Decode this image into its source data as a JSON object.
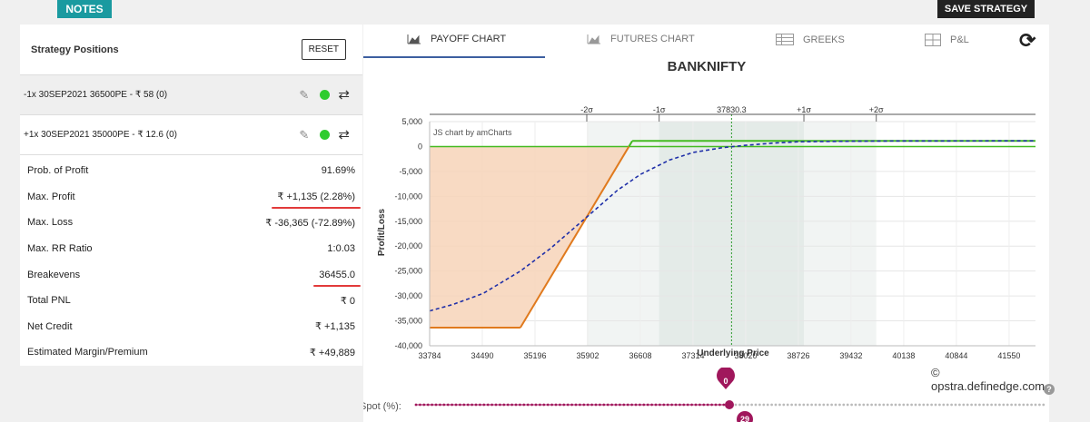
{
  "top": {
    "notes_label": "NOTES",
    "save_label": "SAVE STRATEGY"
  },
  "positions": {
    "title": "Strategy Positions",
    "reset_label": "RESET",
    "items": [
      {
        "label": "-1x 30SEP2021 36500PE - ₹ 58  (0)"
      },
      {
        "label": "+1x 30SEP2021 35000PE - ₹ 12.6  (0)"
      }
    ]
  },
  "stats": [
    {
      "label": "Prob. of Profit",
      "value": "91.69%"
    },
    {
      "label": "Max. Profit",
      "value": "₹ +1,135 (2.28%)"
    },
    {
      "label": "Max. Loss",
      "value": "₹ -36,365 (-72.89%)"
    },
    {
      "label": "Max. RR Ratio",
      "value": "1:0.03"
    },
    {
      "label": "Breakevens",
      "value": "36455.0"
    },
    {
      "label": "Total PNL",
      "value": "₹ 0"
    },
    {
      "label": "Net Credit",
      "value": "₹ +1,135"
    },
    {
      "label": "Estimated Margin/Premium",
      "value": "₹ +49,889"
    }
  ],
  "tabs": [
    {
      "label": "PAYOFF CHART",
      "icon": "area-chart-icon"
    },
    {
      "label": "FUTURES CHART",
      "icon": "area-chart-icon"
    },
    {
      "label": "GREEKS",
      "icon": "table-icon"
    },
    {
      "label": "P&L",
      "icon": "grid-icon"
    }
  ],
  "watermark": "© opstra.definedge.com",
  "spot": {
    "label": "Spot (%):",
    "value_label": "0",
    "lower_label": "29",
    "value": 0
  },
  "colors": {
    "accent": "#1a9aa0",
    "payoff_line": "#e07a1e",
    "profit_line": "#44bb22",
    "loss_fill": "#f7d4b8",
    "t0_line": "#1f2fa8",
    "sigma_band": "#e6ecea",
    "slider": "#a0175c"
  },
  "chart_data": {
    "type": "line",
    "title": "BANKNIFTY",
    "credit": "JS chart by amCharts",
    "xlabel": "Underlying Price",
    "ylabel": "Profit/Loss",
    "xlim": [
      33784,
      41904
    ],
    "ylim": [
      -40000,
      5000
    ],
    "x_ticks": [
      33784,
      34490,
      35196,
      35902,
      36608,
      37314,
      38020,
      38726,
      39432,
      40138,
      40844,
      41550
    ],
    "y_ticks": [
      5000,
      0,
      -5000,
      -10000,
      -15000,
      -20000,
      -25000,
      -30000,
      -35000,
      -40000
    ],
    "y_tick_labels": [
      "5,000",
      "0",
      "-5,000",
      "-10,000",
      "-15,000",
      "-20,000",
      "-25,000",
      "-30,000",
      "-35,000",
      "-40,000"
    ],
    "sigma_markers": [
      {
        "label": "-2σ",
        "x": 35890
      },
      {
        "label": "-1σ",
        "x": 36860
      },
      {
        "label": "37830.3",
        "x": 37830.3
      },
      {
        "label": "+1σ",
        "x": 38800
      },
      {
        "label": "+2σ",
        "x": 39770
      }
    ],
    "series": [
      {
        "style": "solid",
        "color": "#e07a1e",
        "points": [
          [
            33784,
            -36365
          ],
          [
            35000,
            -36365
          ],
          [
            36455,
            0
          ],
          [
            36500,
            1135
          ],
          [
            41904,
            1135
          ]
        ]
      },
      {
        "style": "dashed",
        "color": "#1f2fa8",
        "points": [
          [
            33784,
            -33000
          ],
          [
            34100,
            -31700
          ],
          [
            34500,
            -29500
          ],
          [
            35000,
            -25000
          ],
          [
            35400,
            -20500
          ],
          [
            35902,
            -14000
          ],
          [
            36300,
            -8800
          ],
          [
            36608,
            -5600
          ],
          [
            37000,
            -2700
          ],
          [
            37314,
            -1200
          ],
          [
            37700,
            -250
          ],
          [
            38020,
            250
          ],
          [
            38400,
            700
          ],
          [
            38726,
            950
          ],
          [
            39432,
            1070
          ],
          [
            40138,
            1120
          ],
          [
            41904,
            1135
          ]
        ]
      }
    ]
  }
}
